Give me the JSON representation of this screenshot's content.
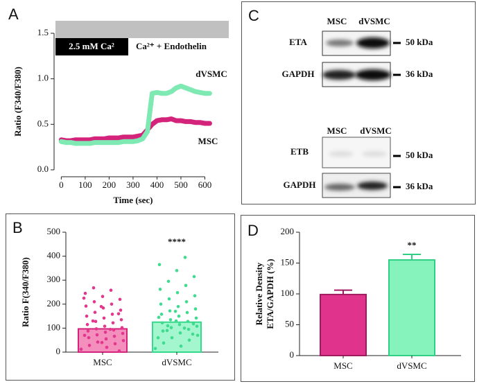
{
  "chart_data": [
    {
      "type": "line",
      "panel_label": "A",
      "xlabel": "Time (sec)",
      "ylabel": "Ratio (F340/F380)",
      "annotations": [
        "2.5 mM Ca²",
        "Ca²⁺ + Endothelin"
      ],
      "x": [
        0,
        20,
        40,
        60,
        80,
        100,
        120,
        140,
        160,
        180,
        200,
        220,
        240,
        260,
        280,
        300,
        320,
        340,
        360,
        380,
        400,
        420,
        440,
        460,
        480,
        500,
        520,
        540,
        560,
        580,
        600,
        620
      ],
      "series": [
        {
          "name": "MSC",
          "color": "#d4237a",
          "values": [
            0.33,
            0.32,
            0.32,
            0.33,
            0.33,
            0.33,
            0.33,
            0.34,
            0.34,
            0.34,
            0.35,
            0.35,
            0.35,
            0.36,
            0.36,
            0.36,
            0.37,
            0.38,
            0.44,
            0.5,
            0.54,
            0.55,
            0.55,
            0.56,
            0.54,
            0.54,
            0.53,
            0.53,
            0.52,
            0.52,
            0.51,
            0.51
          ]
        },
        {
          "name": "dVSMC",
          "color": "#7fe9b3",
          "values": [
            0.31,
            0.3,
            0.3,
            0.29,
            0.29,
            0.29,
            0.29,
            0.3,
            0.3,
            0.3,
            0.3,
            0.3,
            0.3,
            0.31,
            0.31,
            0.31,
            0.32,
            0.34,
            0.42,
            0.84,
            0.85,
            0.84,
            0.84,
            0.86,
            0.9,
            0.92,
            0.9,
            0.88,
            0.86,
            0.85,
            0.84,
            0.84
          ]
        }
      ],
      "xlim": [
        -30,
        700
      ],
      "ylim": [
        0,
        1.5
      ],
      "xticks": [
        0,
        100,
        200,
        300,
        400,
        500,
        600
      ],
      "yticks": [
        {
          "value": 0,
          "label": "0.0"
        },
        {
          "value": 0.5,
          "label": "0.5"
        },
        {
          "value": 1,
          "label": "1.0"
        },
        {
          "value": 1.5,
          "label": "1.5"
        }
      ]
    },
    {
      "type": "bar",
      "panel_label": "B",
      "ylabel": "Ratio F(340/F380)",
      "annotations": [
        "****"
      ],
      "categories": [
        "MSC",
        "dVSMC"
      ],
      "values": [
        97,
        125
      ],
      "colors": [
        "#f27ab0",
        "#93f5c6"
      ],
      "edge_colors": [
        "#d4237a",
        "#35d98c"
      ],
      "point_colors": [
        "#e2368f",
        "#3fdc8f"
      ],
      "points": [
        [
          12,
          20,
          28,
          35,
          42,
          48,
          55,
          60,
          66,
          72,
          78,
          83,
          88,
          92,
          97,
          102,
          108,
          115,
          122,
          128,
          135,
          142,
          150,
          158,
          166,
          175,
          184,
          192,
          200,
          210,
          220,
          232,
          245,
          258,
          268,
          5,
          40,
          70,
          95,
          130,
          160,
          190,
          225
        ],
        [
          15,
          25,
          38,
          50,
          60,
          70,
          80,
          88,
          95,
          102,
          108,
          115,
          122,
          128,
          135,
          142,
          150,
          158,
          165,
          172,
          180,
          190,
          200,
          210,
          222,
          235,
          248,
          262,
          278,
          295,
          315,
          340,
          365,
          395,
          110,
          118,
          130,
          145,
          100,
          90,
          75,
          170,
          60
        ]
      ],
      "ylim": [
        0,
        500
      ],
      "yticks": [
        0,
        100,
        200,
        300,
        400,
        500
      ]
    },
    {
      "type": "bar",
      "panel_label": "D",
      "ylabel": [
        "Relative Density",
        "ETA/GAPDH (%)"
      ],
      "annotations": [
        "**"
      ],
      "categories": [
        "MSC",
        "dVSMC"
      ],
      "values": [
        99,
        155
      ],
      "errors": [
        7,
        9
      ],
      "colors": [
        "#e0348c",
        "#86f3bd"
      ],
      "edge_colors": [
        "#a01a60",
        "#2fcf85"
      ],
      "ylim": [
        0,
        200
      ],
      "yticks": [
        0,
        50,
        100,
        150,
        200
      ]
    }
  ],
  "blots": {
    "panel_label": "C",
    "top": {
      "lanes": [
        "MSC",
        "dVSMC"
      ],
      "rows": [
        {
          "protein": "ETA",
          "size": "50 kDa"
        },
        {
          "protein": "GAPDH",
          "size": "36 kDa"
        }
      ]
    },
    "bottom": {
      "lanes": [
        "MSC",
        "dVSMC"
      ],
      "rows": [
        {
          "protein": "ETB",
          "size": "50 kDa"
        },
        {
          "protein": "GAPDH",
          "size": "36 kDa"
        }
      ]
    }
  }
}
